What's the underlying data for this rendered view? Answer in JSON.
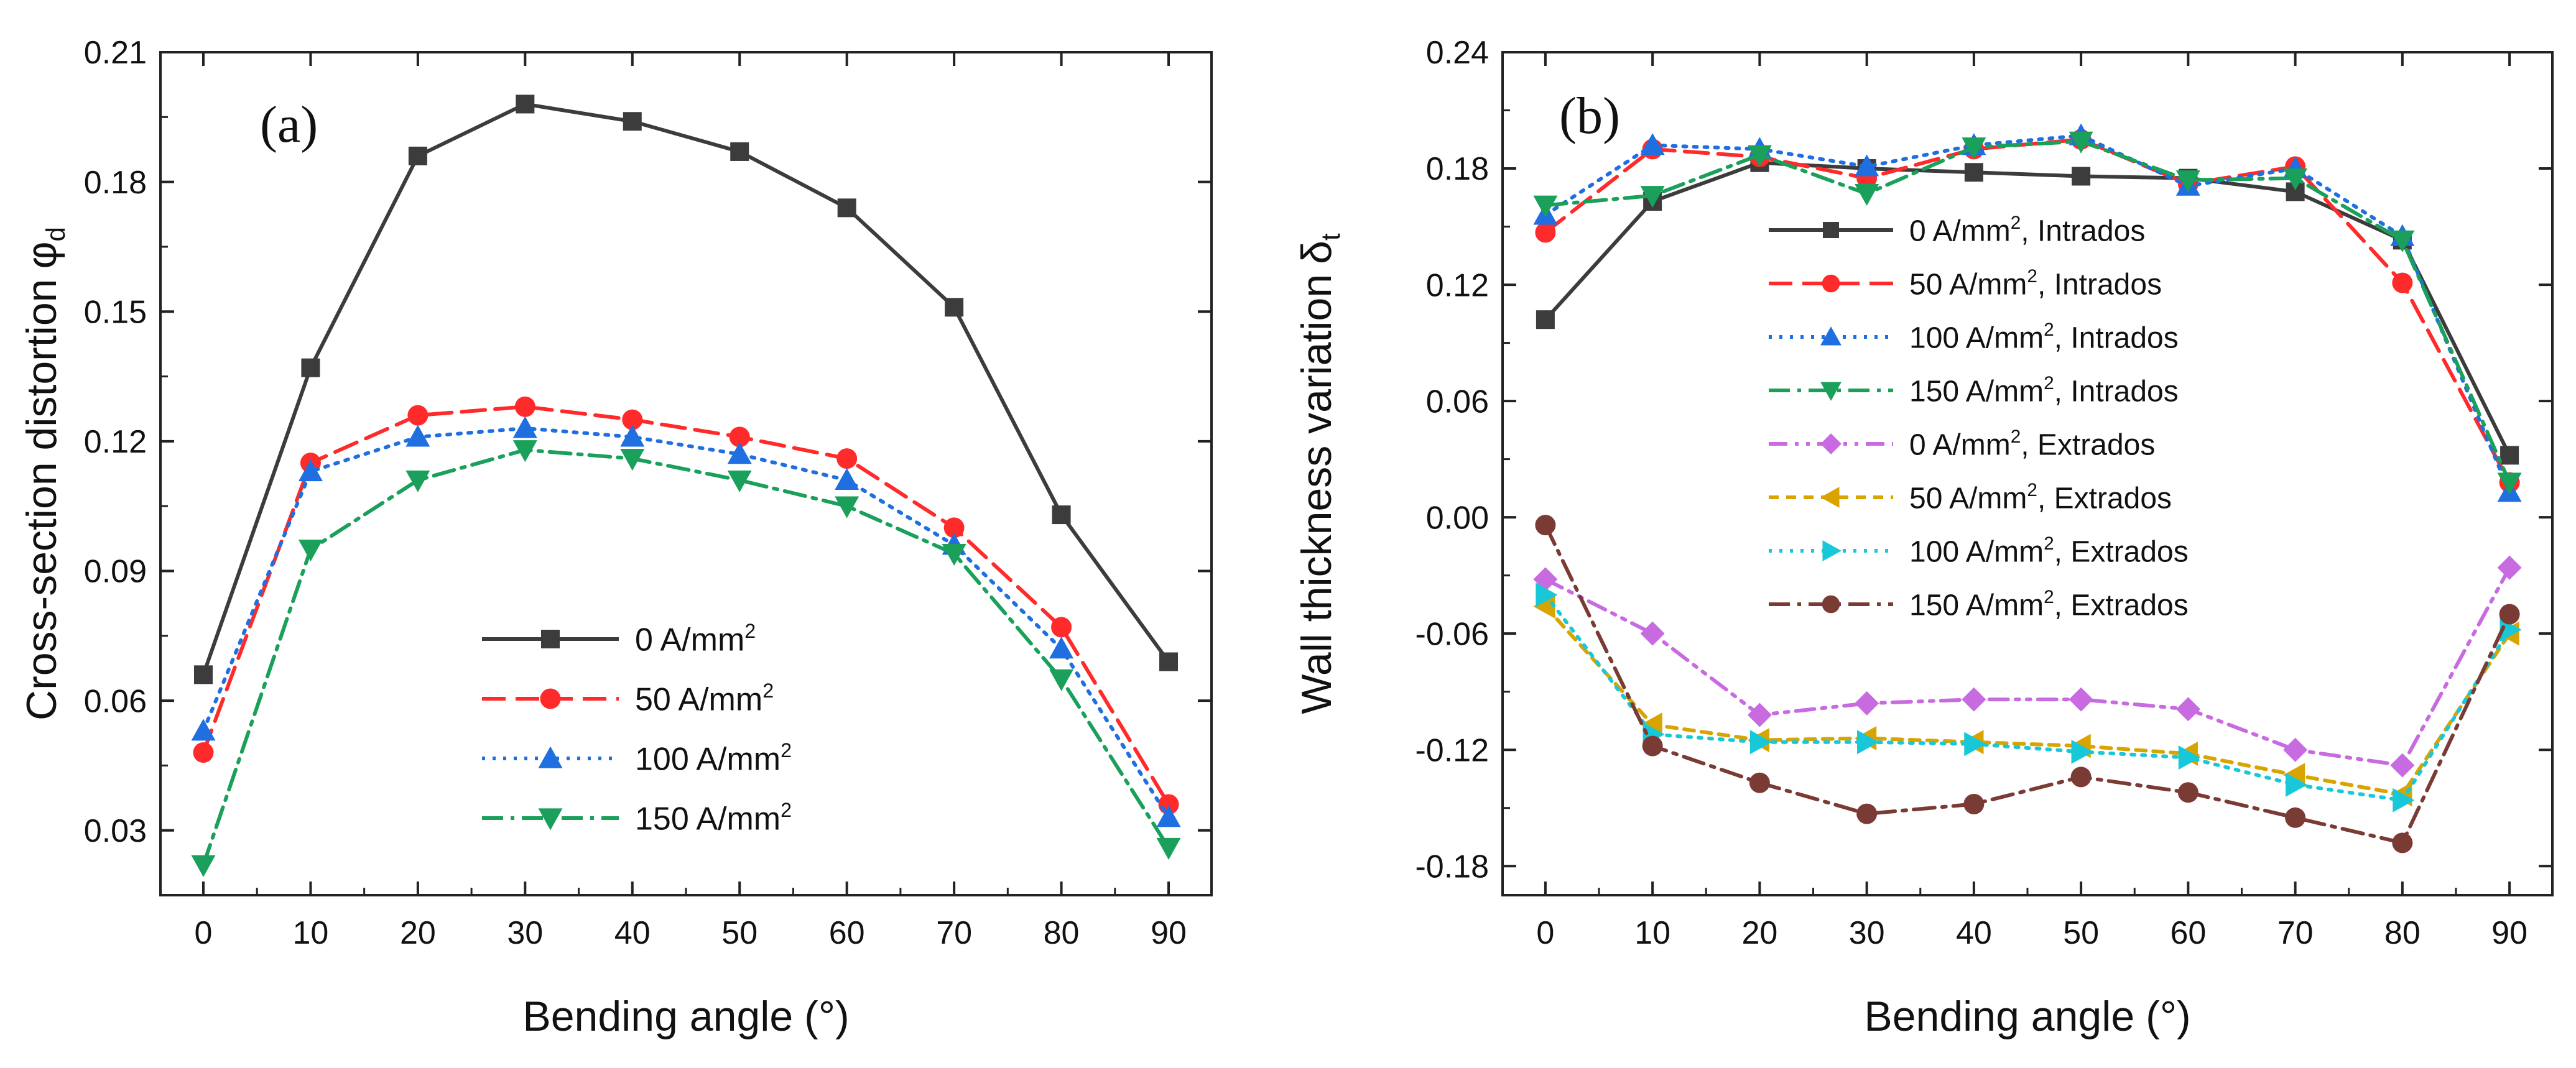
{
  "chart_data": [
    {
      "type": "line",
      "panel_label": "(a)",
      "xlabel": "Bending angle",
      "xlabel_unit": "(°)",
      "ylabel": "Cross-section distortion",
      "ylabel_symbol": "φ",
      "ylabel_subscript": "d",
      "x": [
        0,
        10,
        20,
        30,
        40,
        50,
        60,
        70,
        80,
        90
      ],
      "xlim": [
        -4,
        94
      ],
      "ylim": [
        0.015,
        0.21
      ],
      "yticks": [
        0.03,
        0.06,
        0.09,
        0.12,
        0.15,
        0.18,
        0.21
      ],
      "ytick_labels": [
        "0.03",
        "0.06",
        "0.09",
        "0.12",
        "0.15",
        "0.18",
        "0.21"
      ],
      "xticks": [
        0,
        10,
        20,
        30,
        40,
        50,
        60,
        70,
        80,
        90
      ],
      "xtick_labels": [
        "0",
        "10",
        "20",
        "30",
        "40",
        "50",
        "60",
        "70",
        "80",
        "90"
      ],
      "legend_position": "center",
      "series": [
        {
          "name": "0 A/mm",
          "unit_sup": "2",
          "suffix": "",
          "color": "#3c3c3c",
          "marker": "square",
          "dash": "solid",
          "values": [
            0.066,
            0.137,
            0.186,
            0.198,
            0.194,
            0.187,
            0.174,
            0.151,
            0.103,
            0.069
          ]
        },
        {
          "name": "50 A/mm",
          "unit_sup": "2",
          "suffix": "",
          "color": "#ff2a2a",
          "marker": "circle",
          "dash": "dash",
          "values": [
            0.048,
            0.115,
            0.126,
            0.128,
            0.125,
            0.121,
            0.116,
            0.1,
            0.077,
            0.036
          ]
        },
        {
          "name": "100 A/mm",
          "unit_sup": "2",
          "suffix": "",
          "color": "#1f6fe0",
          "marker": "triangle-up",
          "dash": "dot",
          "values": [
            0.053,
            0.113,
            0.121,
            0.123,
            0.121,
            0.117,
            0.111,
            0.096,
            0.072,
            0.033
          ]
        },
        {
          "name": "150 A/mm",
          "unit_sup": "2",
          "suffix": "",
          "color": "#1aa05a",
          "marker": "triangle-down",
          "dash": "dashdot",
          "values": [
            0.022,
            0.095,
            0.111,
            0.118,
            0.116,
            0.111,
            0.105,
            0.094,
            0.065,
            0.026
          ]
        }
      ]
    },
    {
      "type": "line",
      "panel_label": "(b)",
      "xlabel": "Bending angle",
      "xlabel_unit": "(°)",
      "ylabel": "Wall thickness variation",
      "ylabel_symbol": "δ",
      "ylabel_subscript": "t",
      "x": [
        0,
        10,
        20,
        30,
        40,
        50,
        60,
        70,
        80,
        90
      ],
      "xlim": [
        -4,
        94
      ],
      "ylim": [
        -0.195,
        0.24
      ],
      "yticks": [
        -0.18,
        -0.12,
        -0.06,
        0.0,
        0.06,
        0.12,
        0.18,
        0.24
      ],
      "ytick_labels": [
        "-0.18",
        "-0.12",
        "-0.06",
        "0.00",
        "0.06",
        "0.12",
        "0.18",
        "0.24"
      ],
      "xticks": [
        0,
        10,
        20,
        30,
        40,
        50,
        60,
        70,
        80,
        90
      ],
      "xtick_labels": [
        "0",
        "10",
        "20",
        "30",
        "40",
        "50",
        "60",
        "70",
        "80",
        "90"
      ],
      "legend_position": "center",
      "series": [
        {
          "name": "0 A/mm",
          "unit_sup": "2",
          "suffix": ", Intrados",
          "color": "#3c3c3c",
          "marker": "square",
          "dash": "solid",
          "values": [
            0.102,
            0.163,
            0.183,
            0.18,
            0.178,
            0.176,
            0.175,
            0.168,
            0.143,
            0.032
          ]
        },
        {
          "name": "50 A/mm",
          "unit_sup": "2",
          "suffix": ", Intrados",
          "color": "#ff2a2a",
          "marker": "circle",
          "dash": "dash",
          "values": [
            0.147,
            0.19,
            0.186,
            0.175,
            0.19,
            0.195,
            0.172,
            0.181,
            0.121,
            0.018
          ]
        },
        {
          "name": "100 A/mm",
          "unit_sup": "2",
          "suffix": ", Intrados",
          "color": "#1f6fe0",
          "marker": "triangle-up",
          "dash": "dot",
          "values": [
            0.156,
            0.192,
            0.19,
            0.181,
            0.192,
            0.197,
            0.171,
            0.18,
            0.145,
            0.013
          ]
        },
        {
          "name": "150 A/mm",
          "unit_sup": "2",
          "suffix": ", Intrados",
          "color": "#1aa05a",
          "marker": "triangle-down",
          "dash": "dashdot",
          "values": [
            0.161,
            0.166,
            0.187,
            0.167,
            0.191,
            0.194,
            0.174,
            0.175,
            0.143,
            0.018
          ]
        },
        {
          "name": "0 A/mm",
          "unit_sup": "2",
          "suffix": ", Extrados",
          "color": "#c86be0",
          "marker": "diamond",
          "dash": "dashdotdot",
          "values": [
            -0.032,
            -0.06,
            -0.102,
            -0.096,
            -0.094,
            -0.094,
            -0.099,
            -0.12,
            -0.128,
            -0.026
          ]
        },
        {
          "name": "50 A/mm",
          "unit_sup": "2",
          "suffix": ", Extrados",
          "color": "#d9a400",
          "marker": "triangle-left",
          "dash": "shortdash",
          "values": [
            -0.046,
            -0.107,
            -0.115,
            -0.114,
            -0.116,
            -0.118,
            -0.122,
            -0.133,
            -0.143,
            -0.06
          ]
        },
        {
          "name": "100 A/mm",
          "unit_sup": "2",
          "suffix": ", Extrados",
          "color": "#19c8d8",
          "marker": "triangle-right",
          "dash": "dot",
          "values": [
            -0.04,
            -0.112,
            -0.116,
            -0.116,
            -0.117,
            -0.121,
            -0.124,
            -0.138,
            -0.146,
            -0.058
          ]
        },
        {
          "name": "150 A/mm",
          "unit_sup": "2",
          "suffix": ", Extrados",
          "color": "#7a3b35",
          "marker": "circle",
          "dash": "dashdot",
          "values": [
            -0.004,
            -0.118,
            -0.137,
            -0.153,
            -0.148,
            -0.134,
            -0.142,
            -0.155,
            -0.168,
            -0.05
          ]
        }
      ]
    }
  ]
}
